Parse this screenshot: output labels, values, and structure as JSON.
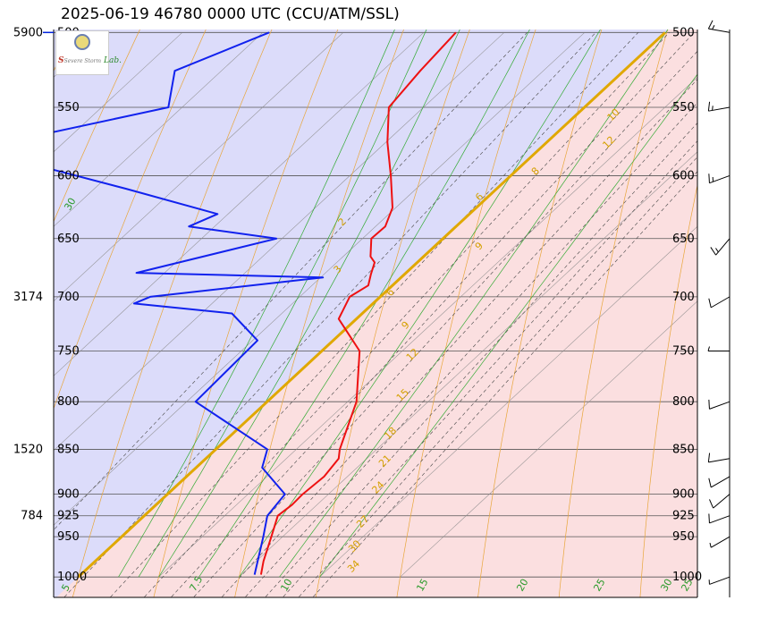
{
  "title": "2025-06-19 46780 0000 UTC (CCU/ATM/SSL)",
  "logo": {
    "brand_a": "S",
    "brand_b": "Lab.",
    "brand_small": "Severe Storm"
  },
  "chart_data": {
    "type": "line",
    "title": "2025-06-19 46780 0000 UTC (CCU/ATM/SSL)",
    "pressure_levels": [
      1000,
      950,
      925,
      900,
      850,
      800,
      750,
      700,
      650,
      600,
      550,
      500
    ],
    "pressure_labels": [
      "1000",
      "950",
      "925",
      "900",
      "850",
      "800",
      "750",
      "700",
      "650",
      "600",
      "550",
      "500"
    ],
    "height_labels": [
      {
        "p": 500,
        "text": "5900"
      },
      {
        "p": 700,
        "text": "3174"
      },
      {
        "p": 850,
        "text": "1520"
      },
      {
        "p": 925,
        "text": "784"
      }
    ],
    "ylim": [
      1000,
      500
    ],
    "xlim": [
      -45,
      35
    ],
    "skew": 1.078,
    "isotherms": [
      -80,
      -70,
      -60,
      -50,
      -40,
      -30,
      -20,
      -10,
      0,
      10,
      20,
      30,
      40
    ],
    "dry_adiabats": [
      -30,
      -20,
      -10,
      0,
      10,
      20,
      30,
      40,
      50,
      60,
      70,
      80,
      90,
      100,
      110,
      120,
      130,
      140,
      150
    ],
    "moist_adiabats": [
      5,
      7.5,
      10,
      15,
      20,
      25,
      30
    ],
    "mixing_ratios": [
      2,
      4,
      6,
      8,
      10,
      12,
      15,
      18,
      21,
      24,
      27,
      30
    ],
    "mixing_ratio_labels": [
      {
        "w": 10,
        "text": "10"
      },
      {
        "w": 12,
        "text": "12"
      },
      {
        "w": 8,
        "text": "8"
      },
      {
        "w": 6,
        "text": "6"
      },
      {
        "w": 2,
        "text": "2"
      },
      {
        "w": 9,
        "text": "9"
      },
      {
        "w": 3,
        "text": "3"
      },
      {
        "w": 6,
        "text": "6"
      },
      {
        "w": 9,
        "text": "9"
      },
      {
        "w": 12,
        "text": "12"
      },
      {
        "w": 15,
        "text": "15"
      },
      {
        "w": 18,
        "text": "18"
      },
      {
        "w": 21,
        "text": "21"
      },
      {
        "w": 24,
        "text": "24"
      },
      {
        "w": 27,
        "text": "27"
      },
      {
        "w": 30,
        "text": "30"
      },
      {
        "w": 34,
        "text": "34"
      }
    ],
    "moist_labels": [
      "5",
      "7.5",
      "10",
      "15",
      "20",
      "25",
      "30",
      "25"
    ],
    "regions": {
      "cold_color": "#dcdcfa",
      "warm_color": "#fbdfe0",
      "divider_color": "#e0a800",
      "boundary_temp": 0
    },
    "series": [
      {
        "name": "Temperature",
        "color": "#ee1111",
        "points": [
          [
            997,
            22.4
          ],
          [
            980,
            20.9
          ],
          [
            950,
            18.6
          ],
          [
            925,
            16.6
          ],
          [
            912,
            16.9
          ],
          [
            900,
            16.8
          ],
          [
            880,
            17.1
          ],
          [
            860,
            16.5
          ],
          [
            850,
            15.4
          ],
          [
            800,
            11.1
          ],
          [
            750,
            4.7
          ],
          [
            720,
            -2.2
          ],
          [
            700,
            -3.8
          ],
          [
            690,
            -3.0
          ],
          [
            680,
            -4.2
          ],
          [
            670,
            -5.3
          ],
          [
            665,
            -6.6
          ],
          [
            650,
            -8.9
          ],
          [
            640,
            -8.8
          ],
          [
            625,
            -10.4
          ],
          [
            600,
            -14.9
          ],
          [
            575,
            -19.8
          ],
          [
            550,
            -24.3
          ],
          [
            525,
            -25.3
          ],
          [
            500,
            -26.0
          ]
        ]
      },
      {
        "name": "Dewpoint",
        "color": "#1122ee",
        "points": [
          [
            997,
            21.6
          ],
          [
            950,
            17.6
          ],
          [
            925,
            15.3
          ],
          [
            900,
            14.6
          ],
          [
            870,
            8.2
          ],
          [
            850,
            6.4
          ],
          [
            800,
            -8.9
          ],
          [
            740,
            -9.4
          ],
          [
            715,
            -16.2
          ],
          [
            706,
            -29.7
          ],
          [
            700,
            -28.6
          ],
          [
            683,
            -9.7
          ],
          [
            679,
            -33.5
          ],
          [
            650,
            -20.7
          ],
          [
            640,
            -33.2
          ],
          [
            630,
            -31.3
          ],
          [
            610,
            -46.1
          ],
          [
            580,
            -70.2
          ],
          [
            550,
            -51.7
          ],
          [
            525,
            -55.8
          ],
          [
            500,
            -49.2
          ]
        ]
      }
    ],
    "wind_barbs": [
      {
        "p": 1000,
        "dir": 250,
        "speed": 5
      },
      {
        "p": 950,
        "dir": 240,
        "speed": 5
      },
      {
        "p": 925,
        "dir": 250,
        "speed": 10
      },
      {
        "p": 900,
        "dir": 230,
        "speed": 10
      },
      {
        "p": 880,
        "dir": 240,
        "speed": 10
      },
      {
        "p": 860,
        "dir": 260,
        "speed": 10
      },
      {
        "p": 800,
        "dir": 250,
        "speed": 10
      },
      {
        "p": 750,
        "dir": 270,
        "speed": 5
      },
      {
        "p": 700,
        "dir": 240,
        "speed": 10
      },
      {
        "p": 650,
        "dir": 220,
        "speed": 15
      },
      {
        "p": 600,
        "dir": 250,
        "speed": 15
      },
      {
        "p": 550,
        "dir": 260,
        "speed": 15
      },
      {
        "p": 500,
        "dir": 280,
        "speed": 15
      }
    ],
    "grid": true
  }
}
